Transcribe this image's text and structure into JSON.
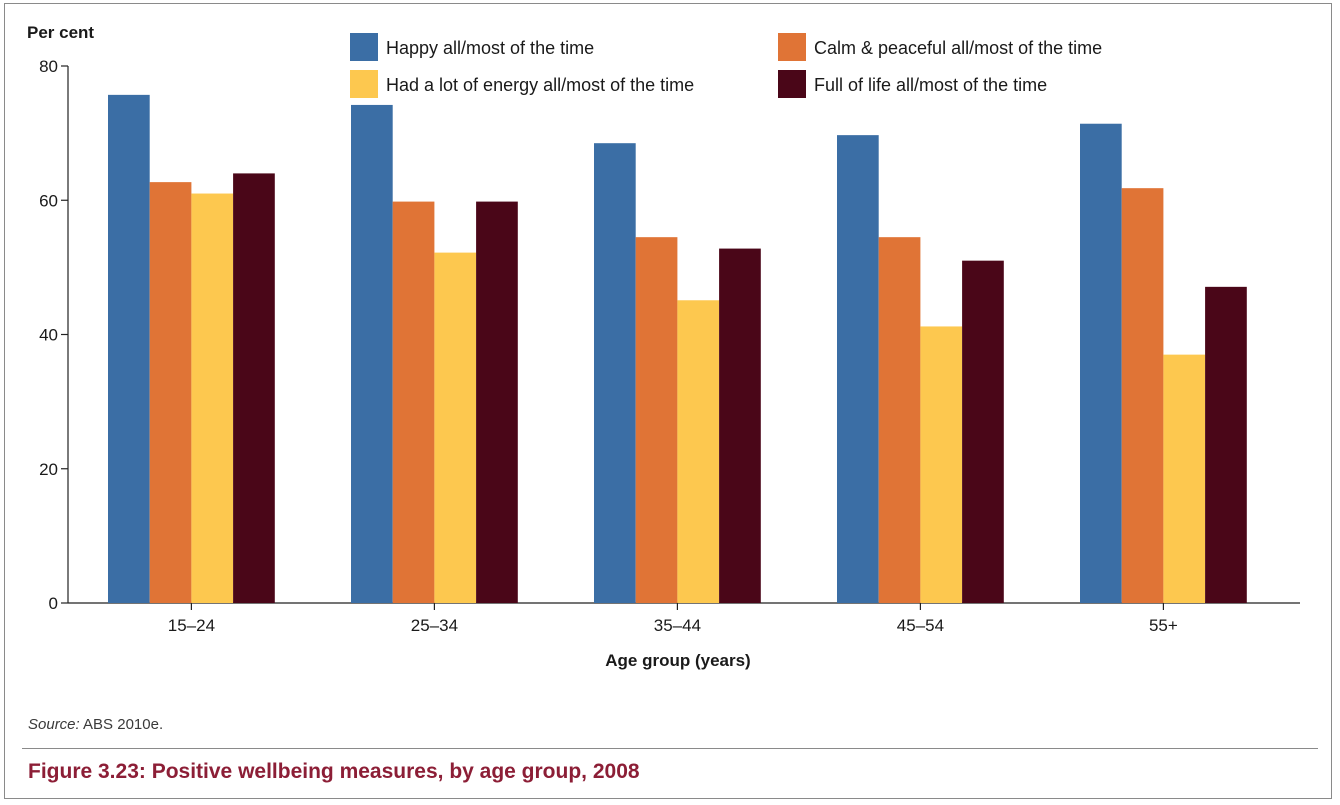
{
  "chart_data": {
    "type": "bar",
    "xlabel": "Age group (years)",
    "ylabel": "Per cent",
    "ylim": [
      0,
      80
    ],
    "yticks": [
      0,
      20,
      40,
      60,
      80
    ],
    "categories": [
      "15–24",
      "25–34",
      "35–44",
      "45–54",
      "55+"
    ],
    "series": [
      {
        "name": "Happy all/most of the time",
        "color": "#3b6ea5",
        "values": [
          75.7,
          74.2,
          68.5,
          69.7,
          71.4
        ]
      },
      {
        "name": "Calm & peaceful all/most of the time",
        "color": "#e07436",
        "values": [
          62.7,
          59.8,
          54.5,
          54.5,
          61.8
        ]
      },
      {
        "name": "Had a lot of energy all/most of the time",
        "color": "#fdc84f",
        "values": [
          61.0,
          52.2,
          45.1,
          41.2,
          37.0
        ]
      },
      {
        "name": "Full of life all/most of the time",
        "color": "#4a0618",
        "values": [
          64.0,
          59.8,
          52.8,
          51.0,
          47.1
        ]
      }
    ],
    "legend": "top"
  },
  "source": {
    "label": "Source:",
    "text": "ABS 2010e."
  },
  "caption": "Figure 3.23: Positive wellbeing measures, by age group, 2008"
}
